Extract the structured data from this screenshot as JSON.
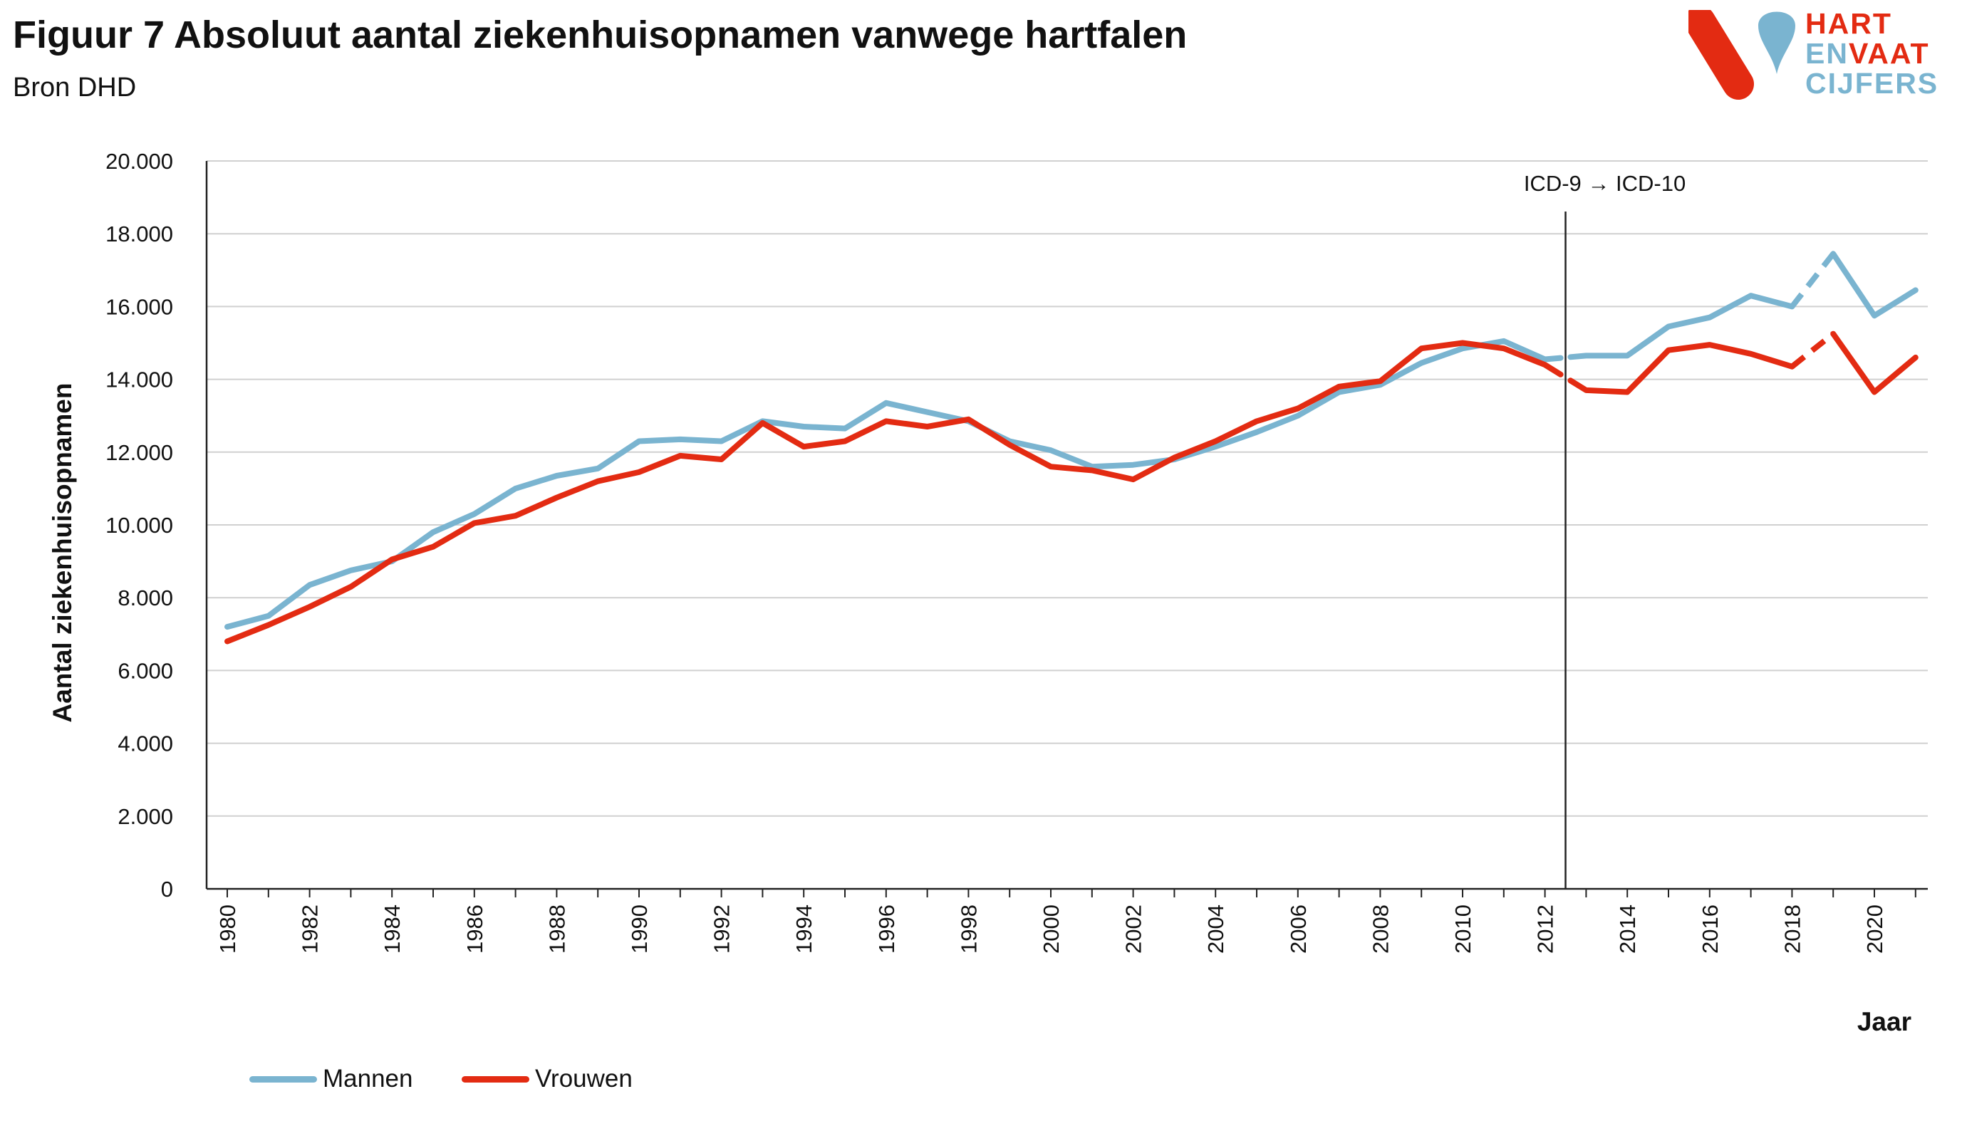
{
  "header": {
    "title": "Figuur 7 Absoluut aantal ziekenhuisopnamen vanwege hartfalen",
    "subtitle": "Bron DHD"
  },
  "logo": {
    "line1": "HART",
    "line2a": "EN",
    "line2b": "VAAT",
    "line3": "CIJFERS",
    "colors": {
      "red": "#e32b12",
      "blue": "#7ab4d0"
    }
  },
  "chart_data": {
    "type": "line",
    "title": "Figuur 7 Absoluut aantal ziekenhuisopnamen vanwege hartfalen",
    "subtitle": "Bron DHD",
    "xlabel": "Jaar",
    "ylabel": "Aantal ziekenhuisopnamen",
    "ylim": [
      0,
      20000
    ],
    "yticks": [
      0,
      2000,
      4000,
      6000,
      8000,
      10000,
      12000,
      14000,
      16000,
      18000,
      20000
    ],
    "ytick_labels": [
      "0",
      "2.000",
      "4.000",
      "6.000",
      "8.000",
      "10.000",
      "12.000",
      "14.000",
      "16.000",
      "18.000",
      "20.000"
    ],
    "x": [
      1980,
      1981,
      1982,
      1983,
      1984,
      1985,
      1986,
      1987,
      1988,
      1989,
      1990,
      1991,
      1992,
      1993,
      1994,
      1995,
      1996,
      1997,
      1998,
      1999,
      2000,
      2001,
      2002,
      2003,
      2004,
      2005,
      2006,
      2007,
      2008,
      2009,
      2010,
      2011,
      2012,
      2013,
      2014,
      2015,
      2016,
      2017,
      2018,
      2019,
      2020,
      2021
    ],
    "xtick_labels": [
      "1980",
      "1982",
      "1984",
      "1986",
      "1988",
      "1990",
      "1992",
      "1994",
      "1996",
      "1998",
      "2000",
      "2002",
      "2004",
      "2006",
      "2008",
      "2010",
      "2012",
      "2014",
      "2016",
      "2018",
      "2020"
    ],
    "grid": "horizontal",
    "legend_position": "bottom-left",
    "series": [
      {
        "name": "Mannen",
        "color": "#7ab4d0",
        "values": [
          7200,
          7500,
          8350,
          8750,
          9000,
          9800,
          10300,
          11000,
          11350,
          11550,
          12300,
          12350,
          12300,
          12850,
          12700,
          12650,
          13350,
          13100,
          12850,
          12300,
          12050,
          11600,
          11650,
          11800,
          12150,
          12550,
          13000,
          13650,
          13850,
          14450,
          14850,
          15050,
          14550,
          14650,
          14650,
          15450,
          15700,
          16300,
          16000,
          17450,
          15750,
          16450
        ]
      },
      {
        "name": "Vrouwen",
        "color": "#e32b12",
        "values": [
          6800,
          7250,
          7750,
          8300,
          9050,
          9400,
          10050,
          10250,
          10750,
          11200,
          11450,
          11900,
          11800,
          12800,
          12150,
          12300,
          12850,
          12700,
          12900,
          12200,
          11600,
          11500,
          11250,
          11850,
          12300,
          12850,
          13200,
          13800,
          13950,
          14850,
          15000,
          14850,
          14400,
          13700,
          13650,
          14800,
          14950,
          14700,
          14350,
          15250,
          13650,
          14600
        ]
      }
    ],
    "dashed_segment_years": [
      2018,
      2019
    ],
    "gap_at_break": true,
    "annotation": {
      "text": "ICD-9 → ICD-10",
      "x": 2012.5
    }
  }
}
